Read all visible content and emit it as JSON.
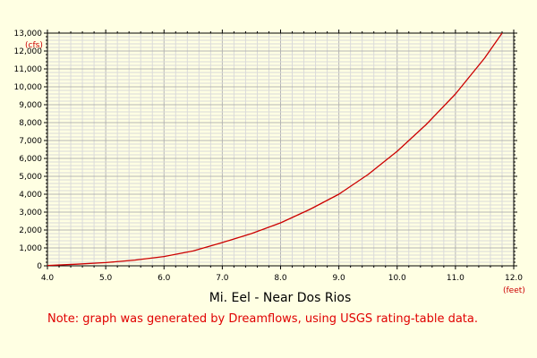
{
  "chart_data": {
    "type": "line",
    "title": "Mi. Eel - Near Dos Rios",
    "note": "Note: graph was generated by Dreamflows, using USGS rating-table data.",
    "xunit": "(feet)",
    "yunit": "(cfs)",
    "xlim": [
      4.0,
      12.0
    ],
    "ylim": [
      0,
      13000
    ],
    "x_ticks": [
      4.0,
      5.0,
      6.0,
      7.0,
      8.0,
      9.0,
      10.0,
      11.0,
      12.0
    ],
    "x_tick_labels": [
      "4.0",
      "5.0",
      "6.0",
      "7.0",
      "8.0",
      "9.0",
      "10.0",
      "11.0",
      "12.0"
    ],
    "y_ticks": [
      0,
      1000,
      2000,
      3000,
      4000,
      5000,
      6000,
      7000,
      8000,
      9000,
      10000,
      11000,
      12000,
      13000
    ],
    "y_tick_labels": [
      "0",
      "1,000",
      "2,000",
      "3,000",
      "4,000",
      "5,000",
      "6,000",
      "7,000",
      "8,000",
      "9,000",
      "10,000",
      "11,000",
      "12,000",
      "13,000"
    ],
    "grid": true,
    "series": [
      {
        "color": "#cc0000",
        "x": [
          4.0,
          4.5,
          5.0,
          5.5,
          6.0,
          6.5,
          7.0,
          7.5,
          8.0,
          8.5,
          9.0,
          9.5,
          10.0,
          10.5,
          11.0,
          11.5,
          11.8
        ],
        "y": [
          20,
          90,
          180,
          320,
          520,
          830,
          1300,
          1800,
          2400,
          3150,
          4000,
          5100,
          6400,
          7900,
          9600,
          11600,
          13000
        ]
      }
    ]
  }
}
